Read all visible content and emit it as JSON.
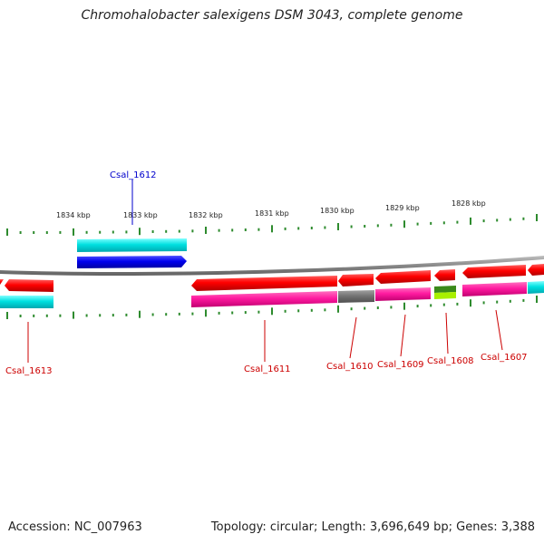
{
  "title": "Chromohalobacter salexigens DSM 3043, complete genome",
  "footer": {
    "accession": "Accession: NC_007963",
    "summary": "Topology: circular; Length: 3,696,649 bp; Genes: 3,388"
  },
  "scale": {
    "ticks": [
      "1834 kbp",
      "1833 kbp",
      "1832 kbp",
      "1831 kbp",
      "1830 kbp",
      "1829 kbp",
      "1828 kbp"
    ]
  },
  "genes": [
    {
      "name": "Csal_1613",
      "color": "#cc0000"
    },
    {
      "name": "Csal_1612",
      "color": "#0000cc"
    },
    {
      "name": "Csal_1611",
      "color": "#cc0000"
    },
    {
      "name": "Csal_1610",
      "color": "#cc0000"
    },
    {
      "name": "Csal_1609",
      "color": "#cc0000"
    },
    {
      "name": "Csal_1608",
      "color": "#cc0000"
    },
    {
      "name": "Csal_1607",
      "color": "#cc0000"
    }
  ],
  "colors": {
    "forward_cds": "#0000ff",
    "reverse_cds": "#ff0000",
    "backbone": "#888888",
    "cog_cyan": "#00e5e5",
    "cog_magenta": "#ff1aa0",
    "cog_gray": "#707070",
    "cog_green": "#3a8a1a",
    "cog_lime": "#a8f000",
    "tick": "#2e8b2e"
  }
}
